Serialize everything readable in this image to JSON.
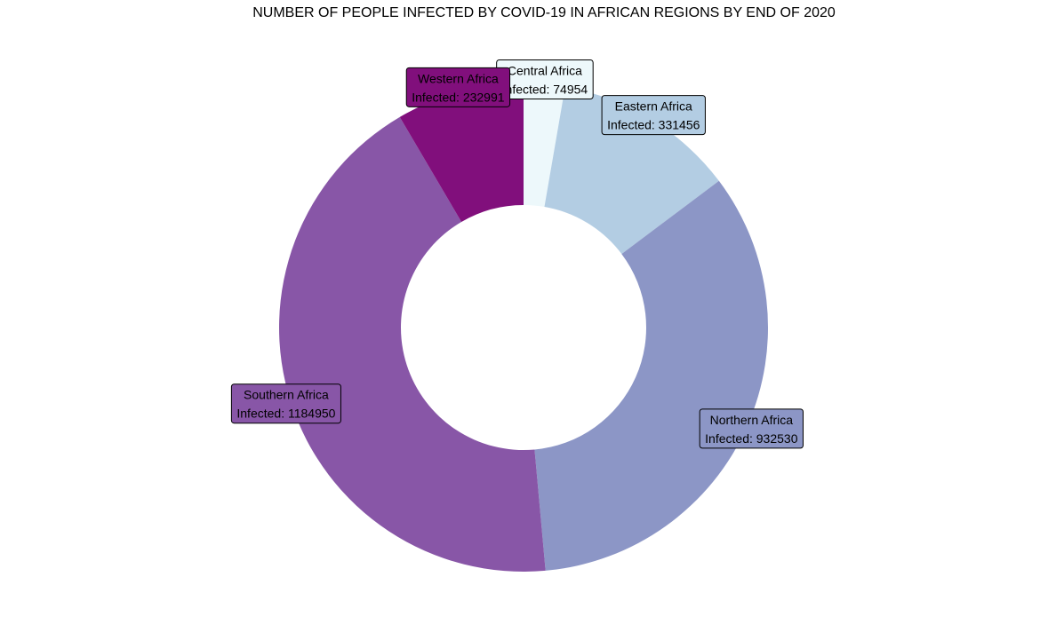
{
  "chart_data": {
    "type": "pie",
    "title": "NUMBER OF PEOPLE INFECTED BY COVID-19 IN AFRICAN REGIONS BY END OF 2020",
    "label_prefix": "Infected: ",
    "slices": [
      {
        "name": "Central Africa",
        "value": 74954,
        "color": "#edf8fb"
      },
      {
        "name": "Eastern Africa",
        "value": 331456,
        "color": "#b3cde3"
      },
      {
        "name": "Northern Africa",
        "value": 932530,
        "color": "#8c96c6"
      },
      {
        "name": "Southern Africa",
        "value": 1184950,
        "color": "#8856a7"
      },
      {
        "name": "Western Africa",
        "value": 232991,
        "color": "#810f7c"
      }
    ]
  }
}
